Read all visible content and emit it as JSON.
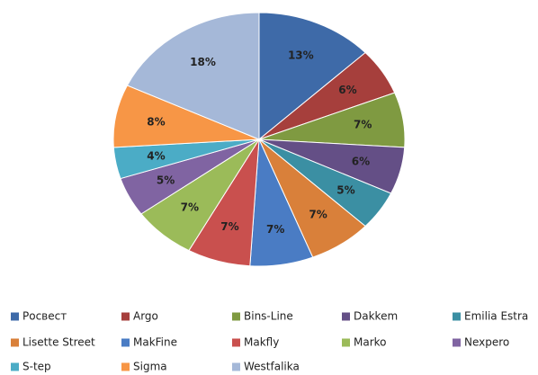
{
  "chart_data": {
    "type": "pie",
    "categories": [
      "Росвест",
      "Argo",
      "Bins-Line",
      "Dakkem",
      "Emilia Estra",
      "Lisette Street",
      "MakFine",
      "Makfly",
      "Marko",
      "Nexpero",
      "S-tep",
      "Sigma",
      "Westfalika"
    ],
    "values": [
      13,
      6,
      7,
      6,
      5,
      7,
      7,
      7,
      7,
      5,
      4,
      8,
      18
    ],
    "value_labels": [
      "13%",
      "6%",
      "7%",
      "6%",
      "5%",
      "7%",
      "7%",
      "7%",
      "7%",
      "5%",
      "4%",
      "8%",
      "18%"
    ],
    "colors": [
      "#3e6aa8",
      "#a63f3c",
      "#7f9a41",
      "#644f86",
      "#3b8fa3",
      "#d9803a",
      "#4a7cc4",
      "#c9504e",
      "#9bbb59",
      "#8064a2",
      "#4bacc6",
      "#f79646",
      "#a5b8d8"
    ],
    "legend": "bottom"
  }
}
